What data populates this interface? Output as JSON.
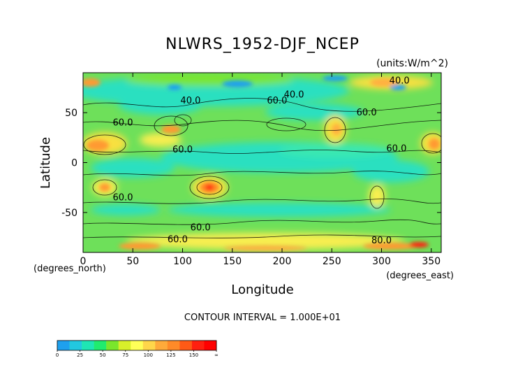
{
  "chart_data": {
    "type": "heatmap",
    "title": "NLWRS_1952-DJF_NCEP",
    "units_label": "(units:W/m^2)",
    "xlabel": "Longitude",
    "x_unit_label": "(degrees_east)",
    "ylabel": "Latitude",
    "y_unit_label": "(degrees_north)",
    "xlim": [
      0,
      360
    ],
    "ylim": [
      -90,
      90
    ],
    "x_ticks": [
      0,
      50,
      100,
      150,
      200,
      250,
      300,
      350
    ],
    "y_ticks": [
      50,
      0,
      -50
    ],
    "contour_interval_label": "CONTOUR INTERVAL = 1.000E+01",
    "contour_labels": [
      {
        "text": "40.0",
        "lon": 108,
        "lat": 62
      },
      {
        "text": "40.0",
        "lon": 212,
        "lat": 68
      },
      {
        "text": "40.0",
        "lon": 318,
        "lat": 82
      },
      {
        "text": "60.0",
        "lon": 195,
        "lat": 62
      },
      {
        "text": "60.0",
        "lon": 285,
        "lat": 50
      },
      {
        "text": "60.0",
        "lon": 40,
        "lat": 40
      },
      {
        "text": "60.0",
        "lon": 100,
        "lat": 13
      },
      {
        "text": "60.0",
        "lon": 315,
        "lat": 14
      },
      {
        "text": "60.0",
        "lon": 40,
        "lat": -35
      },
      {
        "text": "60.0",
        "lon": 118,
        "lat": -65
      },
      {
        "text": "60.0",
        "lon": 95,
        "lat": -77
      },
      {
        "text": "80.0",
        "lon": 300,
        "lat": -78
      }
    ],
    "colorbar": {
      "tick_labels": [
        "0",
        "25",
        "50",
        "75",
        "100",
        "125",
        "150",
        "∞"
      ],
      "colors": [
        "#1ea0ee",
        "#22c8e0",
        "#1fe6b4",
        "#20ec6e",
        "#7ae62c",
        "#d8ef2a",
        "#ffff58",
        "#ffd64a",
        "#ffaa3a",
        "#ff8a28",
        "#ff5a16",
        "#ff2010",
        "#ff0000"
      ]
    }
  }
}
